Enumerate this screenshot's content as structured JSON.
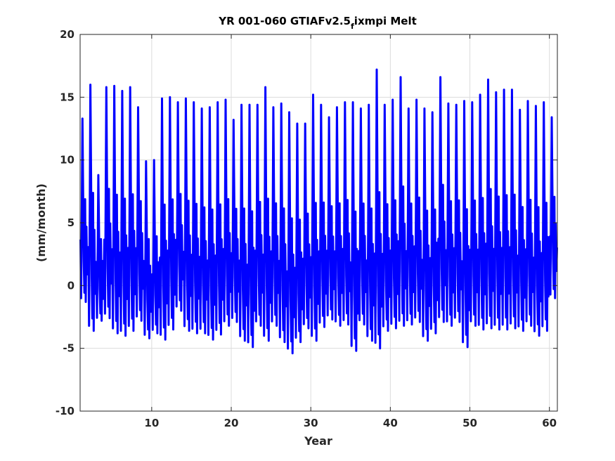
{
  "chart_data": {
    "type": "line",
    "title_main": "YR 001-060 GTIAFv2.5",
    "title_sub": "f",
    "title_tail": "ixmpi Melt",
    "xlabel": "Year",
    "ylabel": "(mm/month)",
    "xlim": [
      1,
      61
    ],
    "ylim": [
      -10,
      20
    ],
    "xticks": [
      10,
      20,
      30,
      40,
      50,
      60
    ],
    "yticks": [
      -10,
      -5,
      0,
      5,
      10,
      15,
      20
    ],
    "grid": true,
    "legend": "none",
    "series": [
      {
        "color": "#0000ff",
        "line_width": 3,
        "sampling": "monthly",
        "annual_max": [
          13.3,
          16.0,
          8.8,
          15.8,
          15.9,
          15.5,
          15.8,
          14.2,
          9.9,
          10.0,
          14.9,
          15.0,
          14.6,
          14.9,
          14.6,
          14.1,
          14.2,
          14.6,
          14.8,
          13.2,
          14.4,
          14.4,
          14.4,
          15.8,
          14.2,
          14.5,
          13.8,
          12.9,
          12.9,
          15.2,
          14.4,
          13.4,
          14.2,
          14.6,
          14.6,
          14.1,
          14.4,
          17.2,
          14.4,
          14.8,
          16.6,
          14.1,
          14.8,
          14.1,
          13.8,
          16.6,
          14.5,
          14.4,
          14.7,
          14.6,
          15.2,
          16.4,
          15.4,
          15.6,
          15.6,
          14.0,
          14.7,
          14.3,
          14.6,
          13.4
        ],
        "annual_min": [
          -1.3,
          -3.6,
          -2.8,
          -2.6,
          -3.8,
          -4.0,
          -3.6,
          -2.8,
          -4.2,
          -3.8,
          -4.3,
          -3.5,
          -2.0,
          -3.6,
          -3.8,
          -3.8,
          -4.3,
          -3.9,
          -3.2,
          -2.9,
          -4.4,
          -4.9,
          -3.2,
          -4.4,
          -3.2,
          -4.5,
          -5.4,
          -4.5,
          -3.4,
          -4.4,
          -3.3,
          -2.7,
          -3.2,
          -3.1,
          -5.2,
          -3.1,
          -4.4,
          -5.0,
          -3.6,
          -3.4,
          -3.2,
          -3.1,
          -2.9,
          -4.4,
          -3.8,
          -2.9,
          -3.2,
          -2.9,
          -4.9,
          -3.2,
          -3.5,
          -3.4,
          -3.5,
          -3.5,
          -3.4,
          -3.6,
          -3.2,
          -4.0,
          -3.6,
          -1.0
        ]
      }
    ]
  }
}
